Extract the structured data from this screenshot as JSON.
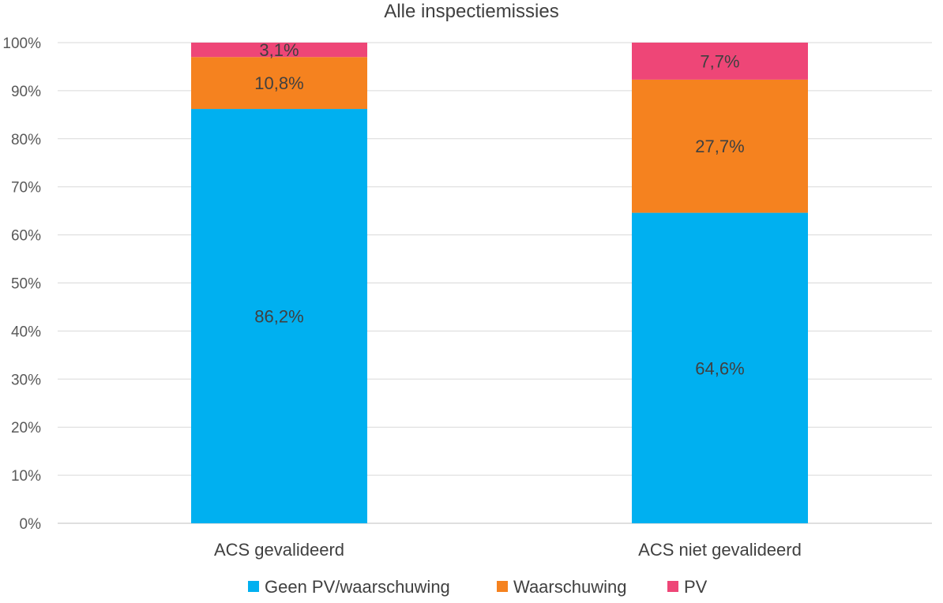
{
  "chart_data": {
    "type": "bar",
    "stacked": true,
    "percent_stacked": true,
    "title": "Alle inspectiemissies",
    "categories": [
      "ACS gevalideerd",
      "ACS niet gevalideerd"
    ],
    "series": [
      {
        "name": "Geen PV/waarschuwing",
        "values": [
          86.2,
          64.6
        ],
        "labels": [
          "86,2%",
          "64,6%"
        ],
        "color": "#00B0F0"
      },
      {
        "name": "Waarschuwing",
        "values": [
          10.8,
          27.7
        ],
        "labels": [
          "10,8%",
          "27,7%"
        ],
        "color": "#F5821F"
      },
      {
        "name": "PV",
        "values": [
          3.1,
          7.7
        ],
        "labels": [
          "3,1%",
          "7,7%"
        ],
        "color": "#EE4677"
      }
    ],
    "ylim": [
      0,
      100
    ],
    "yticks": [
      0,
      10,
      20,
      30,
      40,
      50,
      60,
      70,
      80,
      90,
      100
    ],
    "ytick_labels": [
      "0%",
      "10%",
      "20%",
      "30%",
      "40%",
      "50%",
      "60%",
      "70%",
      "80%",
      "90%",
      "100%"
    ],
    "grid": true,
    "legend_position": "bottom",
    "xlabel": "",
    "ylabel": ""
  }
}
